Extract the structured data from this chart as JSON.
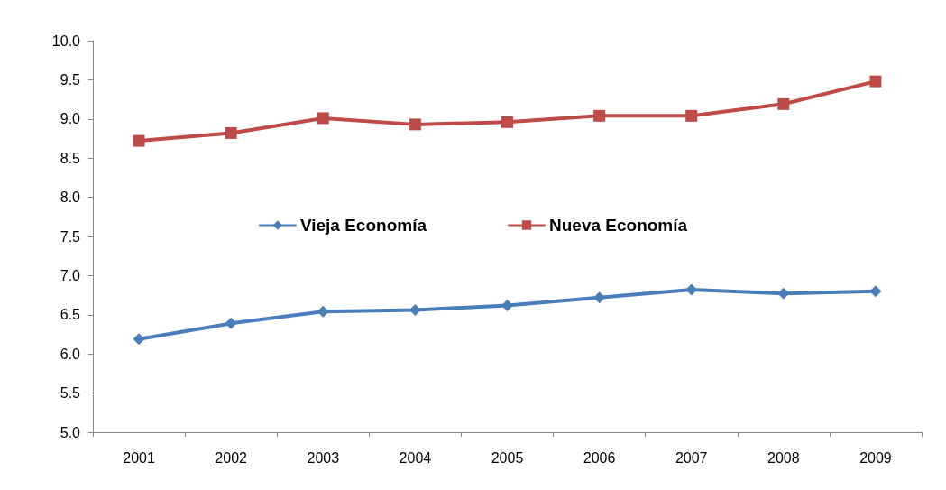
{
  "chart_data": {
    "type": "line",
    "categories": [
      "2001",
      "2002",
      "2003",
      "2004",
      "2005",
      "2006",
      "2007",
      "2008",
      "2009"
    ],
    "series": [
      {
        "name": "Vieja Economía",
        "color": "#4a7ebb",
        "marker": "diamond",
        "values": [
          6.19,
          6.39,
          6.54,
          6.56,
          6.62,
          6.72,
          6.82,
          6.77,
          6.8
        ]
      },
      {
        "name": "Nueva Economía",
        "color": "#be4b48",
        "marker": "square",
        "values": [
          8.72,
          8.82,
          9.01,
          8.93,
          8.96,
          9.04,
          9.04,
          9.19,
          9.48
        ]
      }
    ],
    "ylim": [
      5,
      10
    ],
    "yticks": [
      {
        "value": 5,
        "label": "5.0"
      },
      5.5,
      {
        "value": 6,
        "label": "6.0"
      },
      6.5,
      {
        "value": 7,
        "label": "7.0"
      },
      7.5,
      {
        "value": 8,
        "label": "8.0"
      },
      8.5,
      {
        "value": 9,
        "label": "9.0"
      },
      9.5,
      {
        "value": 10,
        "label": "10.0"
      }
    ],
    "grid": false,
    "legend": "center"
  }
}
